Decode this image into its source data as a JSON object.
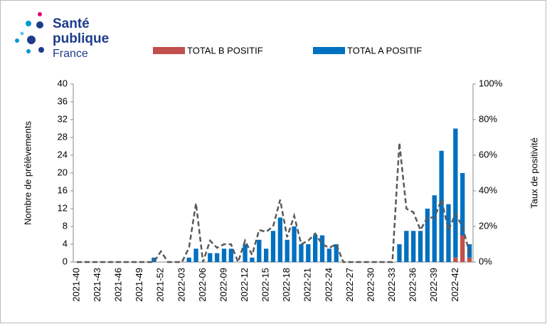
{
  "logo": {
    "line1": "Santé",
    "line2": "publique",
    "line3": "France"
  },
  "chart_data": {
    "type": "bar-line",
    "y_label": "Nombre de prélèvements",
    "y2_label": "Taux de positivité",
    "categories": [
      "2021-40",
      null,
      null,
      "2021-43",
      null,
      null,
      "2021-46",
      null,
      null,
      "2021-49",
      null,
      null,
      "2021-52",
      null,
      null,
      "2022-03",
      null,
      null,
      "2022-06",
      null,
      null,
      "2022-09",
      null,
      null,
      "2022-12",
      null,
      null,
      "2022-15",
      null,
      null,
      "2022-18",
      null,
      null,
      "2022-21",
      null,
      null,
      "2022-24",
      null,
      null,
      "2022-27",
      null,
      null,
      "2022-30",
      null,
      null,
      "2022-33",
      null,
      null,
      "2022-36",
      null,
      null,
      "2022-39",
      null,
      null,
      "2022-42",
      null,
      null
    ],
    "series": [
      {
        "name": "TOTAL B POSITIF",
        "color": "#c0504d",
        "stack": true,
        "values": [
          0,
          0,
          0,
          0,
          0,
          0,
          0,
          0,
          0,
          0,
          0,
          0,
          0,
          0,
          0,
          0,
          0,
          0,
          0,
          0,
          0,
          0,
          0,
          0,
          0,
          0,
          0,
          0,
          0,
          0,
          0,
          0,
          0,
          0,
          0,
          0,
          0,
          0,
          0,
          0,
          0,
          0,
          0,
          0,
          0,
          0,
          0,
          0,
          0,
          0,
          0,
          0,
          0,
          0,
          1,
          6,
          1
        ]
      },
      {
        "name": "TOTAL A POSITIF",
        "color": "#0070c0",
        "stack": true,
        "values": [
          0,
          0,
          0,
          0,
          0,
          0,
          0,
          0,
          0,
          0,
          0,
          1,
          0,
          0,
          0,
          0,
          1,
          3,
          0,
          2,
          2,
          3,
          3,
          0,
          4,
          1,
          5,
          3,
          7,
          10,
          5,
          8,
          4,
          4,
          6,
          6,
          3,
          4,
          0,
          0,
          0,
          0,
          0,
          0,
          0,
          0,
          4,
          7,
          7,
          7,
          12,
          15,
          25,
          13,
          29,
          14,
          3
        ]
      },
      {
        "name": "Taux de positivité",
        "color": "#595959",
        "axis": "y2",
        "line": true,
        "values": [
          0,
          0,
          0,
          0,
          0,
          0,
          0,
          0,
          0,
          0,
          0,
          0,
          6,
          0,
          0,
          0,
          8,
          33,
          0,
          12,
          8,
          10,
          10,
          0,
          12,
          4,
          18,
          17,
          20,
          35,
          14,
          26,
          10,
          12,
          16,
          10,
          8,
          10,
          0,
          0,
          0,
          0,
          0,
          0,
          0,
          0,
          67,
          30,
          28,
          18,
          25,
          25,
          35,
          18,
          27,
          20,
          5
        ]
      }
    ],
    "ylim": [
      0,
      40
    ],
    "yticks": [
      0,
      4,
      8,
      12,
      16,
      20,
      24,
      28,
      32,
      36,
      40
    ],
    "y2lim": [
      0,
      100
    ],
    "y2ticks": [
      {
        "value": 0,
        "label": "0%"
      },
      {
        "value": 20,
        "label": "20%"
      },
      {
        "value": 40,
        "label": "40%"
      },
      {
        "value": 60,
        "label": "60%"
      },
      {
        "value": 80,
        "label": "80%"
      },
      {
        "value": 100,
        "label": "100%"
      }
    ]
  }
}
